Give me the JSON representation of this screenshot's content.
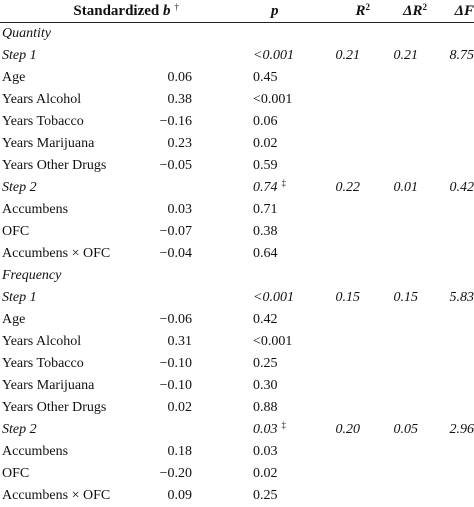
{
  "header": {
    "b_label": "Standardized ",
    "b_var": "b",
    "b_mark": "†",
    "p_label": "p",
    "r2_label": "R",
    "r2_exp": "2",
    "dr2_label": "ΔR",
    "dr2_exp": "2",
    "df_label": "ΔF"
  },
  "rows": [
    {
      "label": "Quantity",
      "kind": "section"
    },
    {
      "label": "Step 1",
      "kind": "step",
      "p": "<0.001",
      "r2": "0.21",
      "dr2": "0.21",
      "df": "8.75"
    },
    {
      "label": "Age",
      "kind": "var",
      "b": "0.06",
      "p": "0.45"
    },
    {
      "label": "Years Alcohol",
      "kind": "var",
      "b": "0.38",
      "p": "<0.001"
    },
    {
      "label": "Years Tobacco",
      "kind": "var",
      "b": "−0.16",
      "p": "0.06"
    },
    {
      "label": "Years Marijuana",
      "kind": "var",
      "b": "0.23",
      "p": "0.02"
    },
    {
      "label": "Years Other Drugs",
      "kind": "var",
      "b": "−0.05",
      "p": "0.59"
    },
    {
      "label": "Step 2",
      "kind": "step",
      "p": "0.74",
      "p_mark": "‡",
      "r2": "0.22",
      "dr2": "0.01",
      "df": "0.42"
    },
    {
      "label": "Accumbens",
      "kind": "var",
      "b": "0.03",
      "p": "0.71"
    },
    {
      "label": "OFC",
      "kind": "var",
      "b": "−0.07",
      "p": "0.38"
    },
    {
      "label": "Accumbens × OFC",
      "kind": "var",
      "b": "−0.04",
      "p": "0.64"
    },
    {
      "label": "Frequency",
      "kind": "section"
    },
    {
      "label": "Step 1",
      "kind": "step",
      "p": "<0.001",
      "r2": "0.15",
      "dr2": "0.15",
      "df": "5.83"
    },
    {
      "label": "Age",
      "kind": "var",
      "b": "−0.06",
      "p": "0.42"
    },
    {
      "label": "Years Alcohol",
      "kind": "var",
      "b": "0.31",
      "p": "<0.001"
    },
    {
      "label": "Years Tobacco",
      "kind": "var",
      "b": "−0.10",
      "p": "0.25"
    },
    {
      "label": "Years Marijuana",
      "kind": "var",
      "b": "−0.10",
      "p": "0.30"
    },
    {
      "label": "Years Other Drugs",
      "kind": "var",
      "b": "0.02",
      "p": "0.88"
    },
    {
      "label": "Step 2",
      "kind": "step",
      "p": "0.03",
      "p_mark": "‡",
      "r2": "0.20",
      "dr2": "0.05",
      "df": "2.96"
    },
    {
      "label": "Accumbens",
      "kind": "var",
      "b": "0.18",
      "p": "0.03"
    },
    {
      "label": "OFC",
      "kind": "var",
      "b": "−0.20",
      "p": "0.02"
    },
    {
      "label": "Accumbens × OFC",
      "kind": "var",
      "b": "0.09",
      "p": "0.25"
    }
  ]
}
